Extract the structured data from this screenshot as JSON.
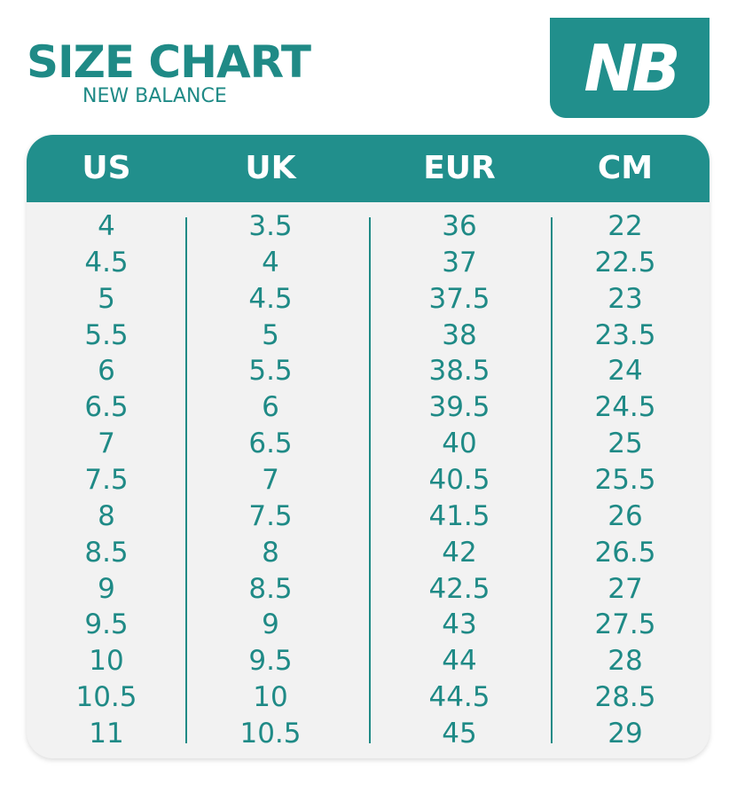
{
  "header": {
    "title": "SIZE CHART",
    "subtitle": "NEW BALANCE",
    "logo": "NB"
  },
  "table": {
    "columns": [
      "US",
      "UK",
      "EUR",
      "CM"
    ],
    "rows": [
      [
        "4",
        "3.5",
        "36",
        "22"
      ],
      [
        "4.5",
        "4",
        "37",
        "22.5"
      ],
      [
        "5",
        "4.5",
        "37.5",
        "23"
      ],
      [
        "5.5",
        "5",
        "38",
        "23.5"
      ],
      [
        "6",
        "5.5",
        "38.5",
        "24"
      ],
      [
        "6.5",
        "6",
        "39.5",
        "24.5"
      ],
      [
        "7",
        "6.5",
        "40",
        "25"
      ],
      [
        "7.5",
        "7",
        "40.5",
        "25.5"
      ],
      [
        "8",
        "7.5",
        "41.5",
        "26"
      ],
      [
        "8.5",
        "8",
        "42",
        "26.5"
      ],
      [
        "9",
        "8.5",
        "42.5",
        "27"
      ],
      [
        "9.5",
        "9",
        "43",
        "27.5"
      ],
      [
        "10",
        "9.5",
        "44",
        "28"
      ],
      [
        "10.5",
        "10",
        "44.5",
        "28.5"
      ],
      [
        "11",
        "10.5",
        "45",
        "29"
      ]
    ]
  }
}
